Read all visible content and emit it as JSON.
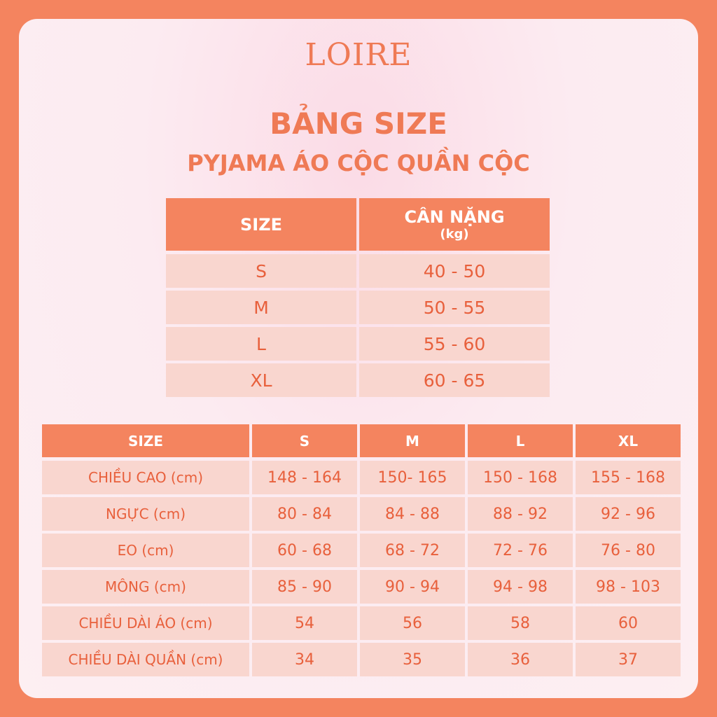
{
  "brand": "LOIRE",
  "title": "BẢNG SIZE",
  "subtitle": "PYJAMA ÁO CỘC QUẦN CỘC",
  "weight_table": {
    "header": [
      "SIZE",
      "CÂN NẶNG"
    ],
    "header_unit": "(kg)",
    "rows": [
      [
        "S",
        "40 - 50"
      ],
      [
        "M",
        "50 - 55"
      ],
      [
        "L",
        "55 - 60"
      ],
      [
        "XL",
        "60 - 65"
      ]
    ]
  },
  "measure_table": {
    "header": [
      "SIZE",
      "S",
      "M",
      "L",
      "XL"
    ],
    "rows": [
      [
        "CHIỀU CAO (cm)",
        "148 - 164",
        "150- 165",
        "150 - 168",
        "155 - 168"
      ],
      [
        "NGỰC (cm)",
        "80 - 84",
        "84 - 88",
        "88 - 92",
        "92 - 96"
      ],
      [
        "EO (cm)",
        "60 - 68",
        "68 - 72",
        "72 - 76",
        "76 - 80"
      ],
      [
        "MÔNG (cm)",
        "85 - 90",
        "90 - 94",
        "94 - 98",
        "98 - 103"
      ],
      [
        "CHIỀU DÀI ÁO (cm)",
        "54",
        "56",
        "58",
        "60"
      ],
      [
        "CHIỀU DÀI QUẦN (cm)",
        "34",
        "35",
        "36",
        "37"
      ]
    ]
  }
}
